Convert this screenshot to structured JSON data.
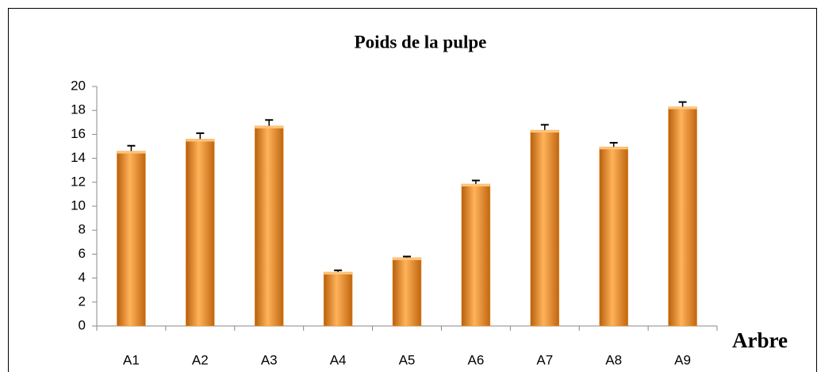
{
  "chart_data": {
    "type": "bar",
    "title": "Poids de la pulpe",
    "x_label": "Arbre",
    "categories": [
      "A1",
      "A2",
      "A3",
      "A4",
      "A5",
      "A6",
      "A7",
      "A8",
      "A9"
    ],
    "values": [
      14.6,
      15.6,
      16.7,
      4.5,
      5.7,
      11.85,
      16.35,
      14.95,
      18.3
    ],
    "errors": [
      0.45,
      0.5,
      0.5,
      0.15,
      0.1,
      0.3,
      0.45,
      0.35,
      0.4
    ],
    "color": "#f0922e",
    "ylim": [
      0,
      20
    ],
    "yticks": [
      0,
      2,
      4,
      6,
      8,
      10,
      12,
      14,
      16,
      18,
      20
    ],
    "grid": false
  }
}
